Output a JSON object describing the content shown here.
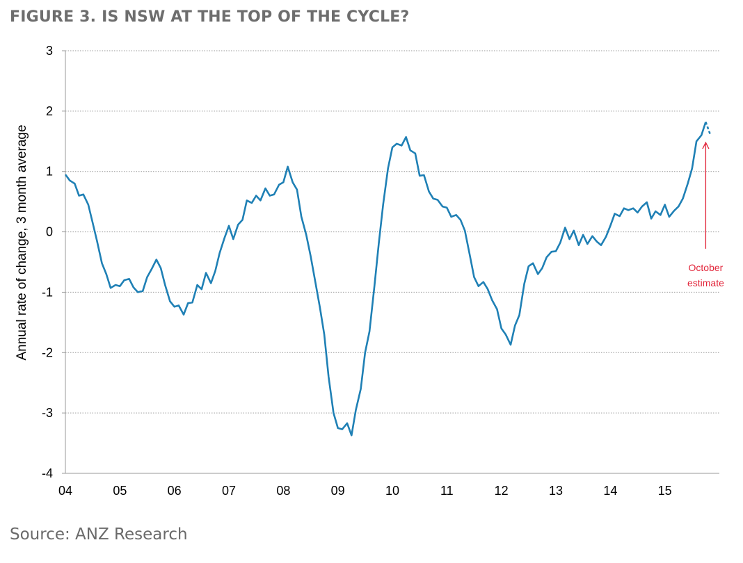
{
  "figure": {
    "title": "FIGURE 3. IS NSW AT THE TOP OF THE CYCLE?",
    "source": "Source: ANZ Research"
  },
  "chart_data": {
    "type": "line",
    "ylabel": "Annual rate of change, 3 month average",
    "xlabel": "",
    "ylim": [
      -4,
      3
    ],
    "yticks": [
      3,
      2,
      1,
      0,
      -1,
      -2,
      -3,
      -4
    ],
    "xlim": [
      2004.0,
      2016.0
    ],
    "xticks": [
      {
        "label": "04",
        "x": 2004
      },
      {
        "label": "05",
        "x": 2005
      },
      {
        "label": "06",
        "x": 2006
      },
      {
        "label": "07",
        "x": 2007
      },
      {
        "label": "08",
        "x": 2008
      },
      {
        "label": "09",
        "x": 2009
      },
      {
        "label": "10",
        "x": 2010
      },
      {
        "label": "11",
        "x": 2011
      },
      {
        "label": "12",
        "x": 2012
      },
      {
        "label": "13",
        "x": 2013
      },
      {
        "label": "14",
        "x": 2014
      },
      {
        "label": "15",
        "x": 2015
      }
    ],
    "grid": "horizontal-dotted",
    "colors": {
      "series": "#1f80b5",
      "annotation": "#e2263b",
      "grid": "#9a9a9a",
      "axis": "#9a9a9a"
    },
    "series": [
      {
        "values": [
          [
            2004.0,
            0.95
          ],
          [
            2004.08,
            0.85
          ],
          [
            2004.17,
            0.8
          ],
          [
            2004.25,
            0.6
          ],
          [
            2004.33,
            0.62
          ],
          [
            2004.42,
            0.45
          ],
          [
            2004.5,
            0.15
          ],
          [
            2004.58,
            -0.15
          ],
          [
            2004.67,
            -0.52
          ],
          [
            2004.75,
            -0.7
          ],
          [
            2004.83,
            -0.93
          ],
          [
            2004.92,
            -0.88
          ],
          [
            2005.0,
            -0.9
          ],
          [
            2005.08,
            -0.8
          ],
          [
            2005.17,
            -0.78
          ],
          [
            2005.25,
            -0.92
          ],
          [
            2005.33,
            -1.0
          ],
          [
            2005.42,
            -0.98
          ],
          [
            2005.5,
            -0.75
          ],
          [
            2005.58,
            -0.62
          ],
          [
            2005.67,
            -0.46
          ],
          [
            2005.75,
            -0.6
          ],
          [
            2005.83,
            -0.88
          ],
          [
            2005.92,
            -1.15
          ],
          [
            2006.0,
            -1.24
          ],
          [
            2006.08,
            -1.22
          ],
          [
            2006.17,
            -1.37
          ],
          [
            2006.25,
            -1.18
          ],
          [
            2006.33,
            -1.17
          ],
          [
            2006.42,
            -0.88
          ],
          [
            2006.5,
            -0.95
          ],
          [
            2006.58,
            -0.68
          ],
          [
            2006.67,
            -0.85
          ],
          [
            2006.75,
            -0.65
          ],
          [
            2006.83,
            -0.35
          ],
          [
            2006.92,
            -0.1
          ],
          [
            2007.0,
            0.1
          ],
          [
            2007.08,
            -0.12
          ],
          [
            2007.17,
            0.12
          ],
          [
            2007.25,
            0.2
          ],
          [
            2007.33,
            0.52
          ],
          [
            2007.42,
            0.48
          ],
          [
            2007.5,
            0.6
          ],
          [
            2007.58,
            0.52
          ],
          [
            2007.67,
            0.72
          ],
          [
            2007.75,
            0.6
          ],
          [
            2007.83,
            0.62
          ],
          [
            2007.92,
            0.78
          ],
          [
            2008.0,
            0.82
          ],
          [
            2008.08,
            1.08
          ],
          [
            2008.17,
            0.82
          ],
          [
            2008.25,
            0.7
          ],
          [
            2008.33,
            0.25
          ],
          [
            2008.42,
            -0.05
          ],
          [
            2008.5,
            -0.4
          ],
          [
            2008.58,
            -0.8
          ],
          [
            2008.67,
            -1.25
          ],
          [
            2008.75,
            -1.7
          ],
          [
            2008.83,
            -2.4
          ],
          [
            2008.92,
            -3.0
          ],
          [
            2009.0,
            -3.25
          ],
          [
            2009.08,
            -3.27
          ],
          [
            2009.17,
            -3.17
          ],
          [
            2009.25,
            -3.37
          ],
          [
            2009.33,
            -2.95
          ],
          [
            2009.42,
            -2.6
          ],
          [
            2009.5,
            -2.0
          ],
          [
            2009.58,
            -1.65
          ],
          [
            2009.67,
            -0.9
          ],
          [
            2009.75,
            -0.2
          ],
          [
            2009.83,
            0.45
          ],
          [
            2009.92,
            1.05
          ],
          [
            2010.0,
            1.4
          ],
          [
            2010.08,
            1.46
          ],
          [
            2010.17,
            1.43
          ],
          [
            2010.25,
            1.57
          ],
          [
            2010.33,
            1.35
          ],
          [
            2010.42,
            1.3
          ],
          [
            2010.5,
            0.93
          ],
          [
            2010.58,
            0.94
          ],
          [
            2010.67,
            0.67
          ],
          [
            2010.75,
            0.55
          ],
          [
            2010.83,
            0.53
          ],
          [
            2010.92,
            0.42
          ],
          [
            2011.0,
            0.4
          ],
          [
            2011.08,
            0.25
          ],
          [
            2011.17,
            0.28
          ],
          [
            2011.25,
            0.2
          ],
          [
            2011.33,
            0.02
          ],
          [
            2011.42,
            -0.38
          ],
          [
            2011.5,
            -0.75
          ],
          [
            2011.58,
            -0.9
          ],
          [
            2011.67,
            -0.83
          ],
          [
            2011.75,
            -0.95
          ],
          [
            2011.83,
            -1.13
          ],
          [
            2011.92,
            -1.28
          ],
          [
            2012.0,
            -1.6
          ],
          [
            2012.08,
            -1.7
          ],
          [
            2012.17,
            -1.87
          ],
          [
            2012.25,
            -1.55
          ],
          [
            2012.33,
            -1.38
          ],
          [
            2012.42,
            -0.86
          ],
          [
            2012.5,
            -0.57
          ],
          [
            2012.58,
            -0.52
          ],
          [
            2012.67,
            -0.7
          ],
          [
            2012.75,
            -0.6
          ],
          [
            2012.83,
            -0.42
          ],
          [
            2012.92,
            -0.33
          ],
          [
            2013.0,
            -0.32
          ],
          [
            2013.08,
            -0.18
          ],
          [
            2013.17,
            0.07
          ],
          [
            2013.25,
            -0.12
          ],
          [
            2013.33,
            0.02
          ],
          [
            2013.42,
            -0.22
          ],
          [
            2013.5,
            -0.05
          ],
          [
            2013.58,
            -0.2
          ],
          [
            2013.67,
            -0.07
          ],
          [
            2013.75,
            -0.16
          ],
          [
            2013.83,
            -0.22
          ],
          [
            2013.92,
            -0.08
          ],
          [
            2014.0,
            0.1
          ],
          [
            2014.08,
            0.3
          ],
          [
            2014.17,
            0.26
          ],
          [
            2014.25,
            0.39
          ],
          [
            2014.33,
            0.36
          ],
          [
            2014.42,
            0.39
          ],
          [
            2014.5,
            0.32
          ],
          [
            2014.58,
            0.42
          ],
          [
            2014.67,
            0.49
          ],
          [
            2014.75,
            0.22
          ],
          [
            2014.83,
            0.34
          ],
          [
            2014.92,
            0.28
          ],
          [
            2015.0,
            0.45
          ],
          [
            2015.08,
            0.25
          ],
          [
            2015.17,
            0.35
          ],
          [
            2015.25,
            0.42
          ],
          [
            2015.33,
            0.55
          ],
          [
            2015.42,
            0.8
          ],
          [
            2015.5,
            1.05
          ],
          [
            2015.58,
            1.5
          ],
          [
            2015.67,
            1.6
          ],
          [
            2015.75,
            1.82
          ]
        ],
        "estimate": [
          [
            2015.75,
            1.82
          ],
          [
            2015.83,
            1.62
          ]
        ]
      }
    ],
    "annotations": [
      {
        "text_lines": [
          "October",
          "estimate"
        ],
        "arrow_from": [
          2015.75,
          -0.28
        ],
        "arrow_to": [
          2015.75,
          1.48
        ]
      }
    ]
  }
}
